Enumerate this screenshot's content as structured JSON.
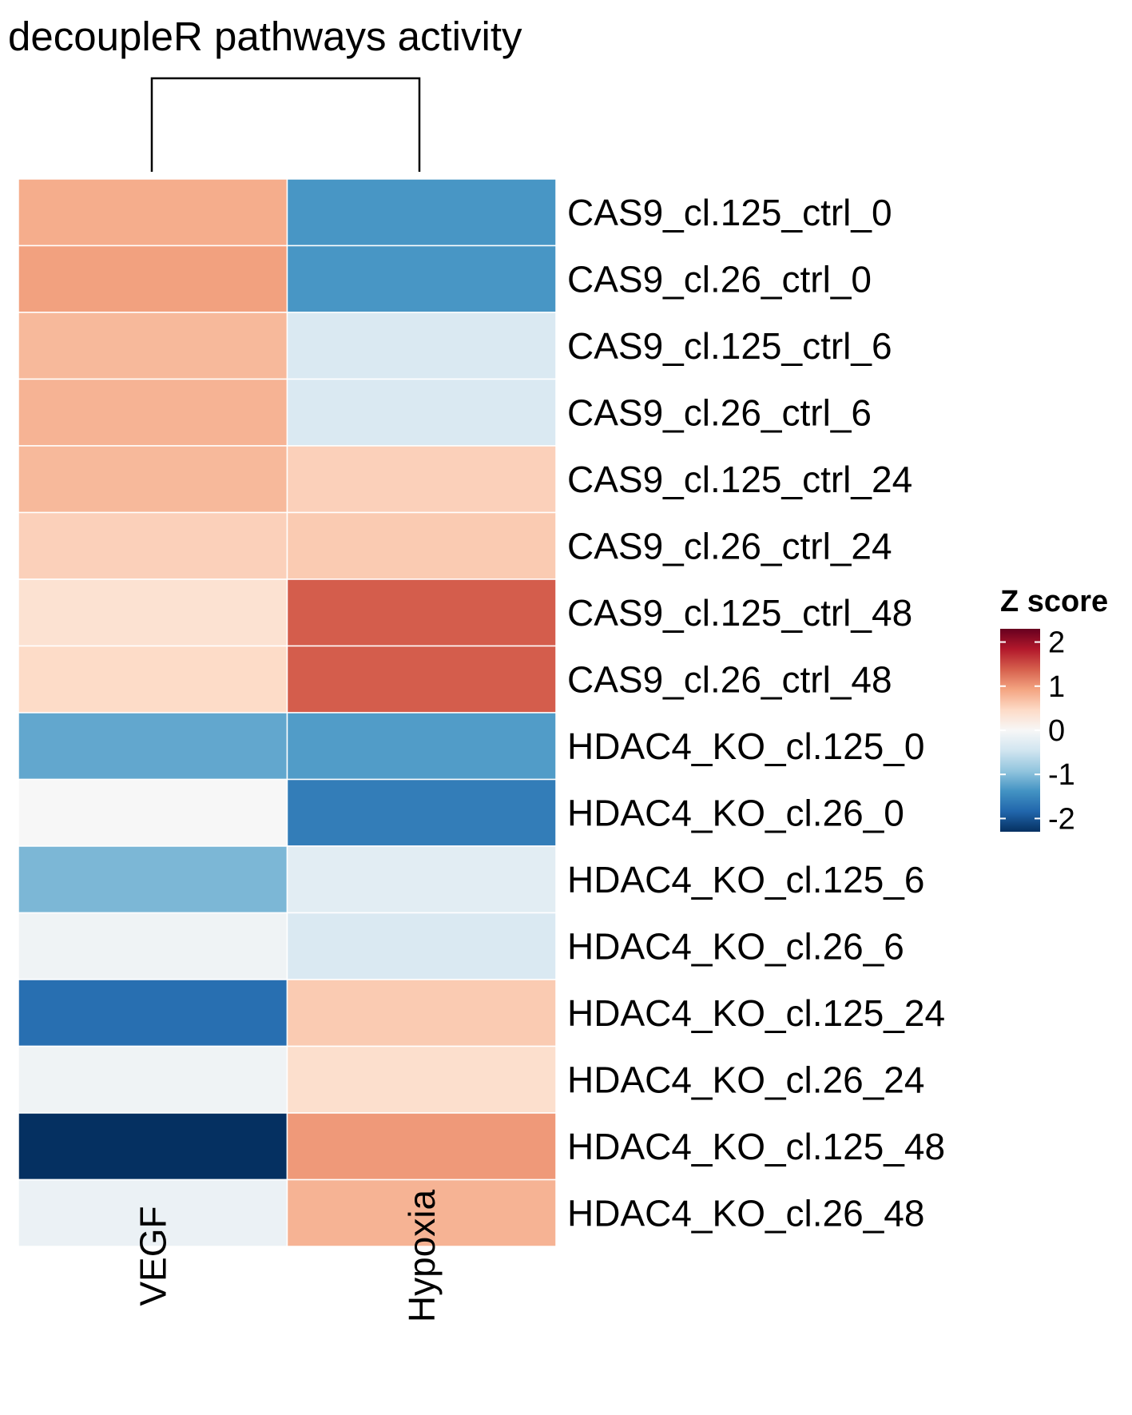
{
  "chart_data": {
    "type": "heatmap",
    "title": "decoupleR pathways activity",
    "columns": [
      "VEGF",
      "Hypoxia"
    ],
    "rows": [
      "CAS9_cl.125_ctrl_0",
      "CAS9_cl.26_ctrl_0",
      "CAS9_cl.125_ctrl_6",
      "CAS9_cl.26_ctrl_6",
      "CAS9_cl.125_ctrl_24",
      "CAS9_cl.26_ctrl_24",
      "CAS9_cl.125_ctrl_48",
      "CAS9_cl.26_ctrl_48",
      "HDAC4_KO_cl.125_0",
      "HDAC4_KO_cl.26_0",
      "HDAC4_KO_cl.125_6",
      "HDAC4_KO_cl.26_6",
      "HDAC4_KO_cl.125_24",
      "HDAC4_KO_cl.26_24",
      "HDAC4_KO_cl.125_48",
      "HDAC4_KO_cl.26_48"
    ],
    "values": [
      [
        0.85,
        -1.35
      ],
      [
        0.95,
        -1.35
      ],
      [
        0.75,
        -0.35
      ],
      [
        0.8,
        -0.35
      ],
      [
        0.75,
        0.55
      ],
      [
        0.55,
        0.6
      ],
      [
        0.35,
        1.4
      ],
      [
        0.45,
        1.4
      ],
      [
        -1.2,
        -1.3
      ],
      [
        0.0,
        -1.6
      ],
      [
        -1.05,
        -0.25
      ],
      [
        -0.1,
        -0.35
      ],
      [
        -1.75,
        0.6
      ],
      [
        -0.1,
        0.4
      ],
      [
        -2.3,
        1.0
      ],
      [
        -0.15,
        0.8
      ]
    ],
    "legend": {
      "title": "Z score",
      "ticks": [
        2,
        1,
        0,
        -1,
        -2
      ],
      "range": [
        -2.3,
        2.3
      ],
      "colors": [
        "#053061",
        "#2166ac",
        "#4393c3",
        "#92c5de",
        "#d1e5f0",
        "#f7f7f7",
        "#fddbc7",
        "#f4a582",
        "#d6604d",
        "#b2182b",
        "#67001f"
      ]
    },
    "column_dendrogram": true
  }
}
